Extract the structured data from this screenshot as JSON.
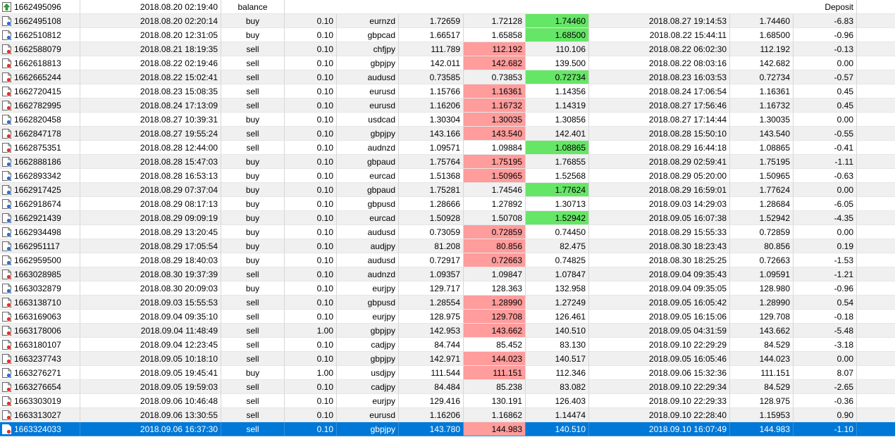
{
  "colors": {
    "sl_hit": "#ff9c9c",
    "tp_hit": "#66e666",
    "selected": "#0078d7",
    "alt_row": "#f0f0f0"
  },
  "balance_row": {
    "ticket": "1662495096",
    "open_time": "2018.08.20 02:19:40",
    "type": "balance",
    "comment": "Deposit",
    "icon": "balance-icon"
  },
  "rows": [
    {
      "ticket": "1662495108",
      "open_time": "2018.08.20 02:20:14",
      "type": "buy",
      "size": "0.10",
      "symbol": "eurnzd",
      "price": "1.72659",
      "sl": "1.72128",
      "tp": "1.74460",
      "close_time": "2018.08.27 19:14:53",
      "close_price": "1.74460",
      "profit": "-6.83",
      "hit": "tp"
    },
    {
      "ticket": "1662510812",
      "open_time": "2018.08.20 12:31:05",
      "type": "buy",
      "size": "0.10",
      "symbol": "gbpcad",
      "price": "1.66517",
      "sl": "1.65858",
      "tp": "1.68500",
      "close_time": "2018.08.22 15:44:11",
      "close_price": "1.68500",
      "profit": "-0.96",
      "hit": "tp"
    },
    {
      "ticket": "1662588079",
      "open_time": "2018.08.21 18:19:35",
      "type": "sell",
      "size": "0.10",
      "symbol": "chfjpy",
      "price": "111.789",
      "sl": "112.192",
      "tp": "110.106",
      "close_time": "2018.08.22 06:02:30",
      "close_price": "112.192",
      "profit": "-0.13",
      "hit": "sl"
    },
    {
      "ticket": "1662618813",
      "open_time": "2018.08.22 02:19:46",
      "type": "sell",
      "size": "0.10",
      "symbol": "gbpjpy",
      "price": "142.011",
      "sl": "142.682",
      "tp": "139.500",
      "close_time": "2018.08.22 08:03:16",
      "close_price": "142.682",
      "profit": "0.00",
      "hit": "sl"
    },
    {
      "ticket": "1662665244",
      "open_time": "2018.08.22 15:02:41",
      "type": "sell",
      "size": "0.10",
      "symbol": "audusd",
      "price": "0.73585",
      "sl": "0.73853",
      "tp": "0.72734",
      "close_time": "2018.08.23 16:03:53",
      "close_price": "0.72734",
      "profit": "-0.57",
      "hit": "tp"
    },
    {
      "ticket": "1662720415",
      "open_time": "2018.08.23 15:08:35",
      "type": "sell",
      "size": "0.10",
      "symbol": "eurusd",
      "price": "1.15766",
      "sl": "1.16361",
      "tp": "1.14356",
      "close_time": "2018.08.24 17:06:54",
      "close_price": "1.16361",
      "profit": "0.45",
      "hit": "sl"
    },
    {
      "ticket": "1662782995",
      "open_time": "2018.08.24 17:13:09",
      "type": "sell",
      "size": "0.10",
      "symbol": "eurusd",
      "price": "1.16206",
      "sl": "1.16732",
      "tp": "1.14319",
      "close_time": "2018.08.27 17:56:46",
      "close_price": "1.16732",
      "profit": "0.45",
      "hit": "sl"
    },
    {
      "ticket": "1662820458",
      "open_time": "2018.08.27 10:39:31",
      "type": "buy",
      "size": "0.10",
      "symbol": "usdcad",
      "price": "1.30304",
      "sl": "1.30035",
      "tp": "1.30856",
      "close_time": "2018.08.27 17:14:44",
      "close_price": "1.30035",
      "profit": "0.00",
      "hit": "sl"
    },
    {
      "ticket": "1662847178",
      "open_time": "2018.08.27 19:55:24",
      "type": "sell",
      "size": "0.10",
      "symbol": "gbpjpy",
      "price": "143.166",
      "sl": "143.540",
      "tp": "142.401",
      "close_time": "2018.08.28 15:50:10",
      "close_price": "143.540",
      "profit": "-0.55",
      "hit": "sl"
    },
    {
      "ticket": "1662875351",
      "open_time": "2018.08.28 12:44:00",
      "type": "sell",
      "size": "0.10",
      "symbol": "audnzd",
      "price": "1.09571",
      "sl": "1.09884",
      "tp": "1.08865",
      "close_time": "2018.08.29 16:44:18",
      "close_price": "1.08865",
      "profit": "-0.41",
      "hit": "tp"
    },
    {
      "ticket": "1662888186",
      "open_time": "2018.08.28 15:47:03",
      "type": "buy",
      "size": "0.10",
      "symbol": "gbpaud",
      "price": "1.75764",
      "sl": "1.75195",
      "tp": "1.76855",
      "close_time": "2018.08.29 02:59:41",
      "close_price": "1.75195",
      "profit": "-1.11",
      "hit": "sl"
    },
    {
      "ticket": "1662893342",
      "open_time": "2018.08.28 16:53:13",
      "type": "buy",
      "size": "0.10",
      "symbol": "eurcad",
      "price": "1.51368",
      "sl": "1.50965",
      "tp": "1.52568",
      "close_time": "2018.08.29 05:20:00",
      "close_price": "1.50965",
      "profit": "-0.63",
      "hit": "sl"
    },
    {
      "ticket": "1662917425",
      "open_time": "2018.08.29 07:37:04",
      "type": "buy",
      "size": "0.10",
      "symbol": "gbpaud",
      "price": "1.75281",
      "sl": "1.74546",
      "tp": "1.77624",
      "close_time": "2018.08.29 16:59:01",
      "close_price": "1.77624",
      "profit": "0.00",
      "hit": "tp"
    },
    {
      "ticket": "1662918674",
      "open_time": "2018.08.29 08:17:13",
      "type": "buy",
      "size": "0.10",
      "symbol": "gbpusd",
      "price": "1.28666",
      "sl": "1.27892",
      "tp": "1.30713",
      "close_time": "2018.09.03 14:29:03",
      "close_price": "1.28684",
      "profit": "-6.05",
      "hit": ""
    },
    {
      "ticket": "1662921439",
      "open_time": "2018.08.29 09:09:19",
      "type": "buy",
      "size": "0.10",
      "symbol": "eurcad",
      "price": "1.50928",
      "sl": "1.50708",
      "tp": "1.52942",
      "close_time": "2018.09.05 16:07:38",
      "close_price": "1.52942",
      "profit": "-4.35",
      "hit": "tp"
    },
    {
      "ticket": "1662934498",
      "open_time": "2018.08.29 13:20:45",
      "type": "buy",
      "size": "0.10",
      "symbol": "audusd",
      "price": "0.73059",
      "sl": "0.72859",
      "tp": "0.74450",
      "close_time": "2018.08.29 15:55:33",
      "close_price": "0.72859",
      "profit": "0.00",
      "hit": "sl"
    },
    {
      "ticket": "1662951117",
      "open_time": "2018.08.29 17:05:54",
      "type": "buy",
      "size": "0.10",
      "symbol": "audjpy",
      "price": "81.208",
      "sl": "80.856",
      "tp": "82.475",
      "close_time": "2018.08.30 18:23:43",
      "close_price": "80.856",
      "profit": "0.19",
      "hit": "sl"
    },
    {
      "ticket": "1662959500",
      "open_time": "2018.08.29 18:40:03",
      "type": "buy",
      "size": "0.10",
      "symbol": "audusd",
      "price": "0.72917",
      "sl": "0.72663",
      "tp": "0.74825",
      "close_time": "2018.08.30 18:25:25",
      "close_price": "0.72663",
      "profit": "-1.53",
      "hit": "sl"
    },
    {
      "ticket": "1663028985",
      "open_time": "2018.08.30 19:37:39",
      "type": "sell",
      "size": "0.10",
      "symbol": "audnzd",
      "price": "1.09357",
      "sl": "1.09847",
      "tp": "1.07847",
      "close_time": "2018.09.04 09:35:43",
      "close_price": "1.09591",
      "profit": "-1.21",
      "hit": ""
    },
    {
      "ticket": "1663032879",
      "open_time": "2018.08.30 20:09:03",
      "type": "buy",
      "size": "0.10",
      "symbol": "eurjpy",
      "price": "129.717",
      "sl": "128.363",
      "tp": "132.958",
      "close_time": "2018.09.04 09:35:05",
      "close_price": "128.980",
      "profit": "-0.96",
      "hit": ""
    },
    {
      "ticket": "1663138710",
      "open_time": "2018.09.03 15:55:53",
      "type": "sell",
      "size": "0.10",
      "symbol": "gbpusd",
      "price": "1.28554",
      "sl": "1.28990",
      "tp": "1.27249",
      "close_time": "2018.09.05 16:05:42",
      "close_price": "1.28990",
      "profit": "0.54",
      "hit": "sl"
    },
    {
      "ticket": "1663169063",
      "open_time": "2018.09.04 09:35:10",
      "type": "sell",
      "size": "0.10",
      "symbol": "eurjpy",
      "price": "128.975",
      "sl": "129.708",
      "tp": "126.461",
      "close_time": "2018.09.05 16:15:06",
      "close_price": "129.708",
      "profit": "-0.18",
      "hit": "sl"
    },
    {
      "ticket": "1663178006",
      "open_time": "2018.09.04 11:48:49",
      "type": "sell",
      "size": "1.00",
      "symbol": "gbpjpy",
      "price": "142.953",
      "sl": "143.662",
      "tp": "140.510",
      "close_time": "2018.09.05 04:31:59",
      "close_price": "143.662",
      "profit": "-5.48",
      "hit": "sl"
    },
    {
      "ticket": "1663180107",
      "open_time": "2018.09.04 12:23:45",
      "type": "sell",
      "size": "0.10",
      "symbol": "cadjpy",
      "price": "84.744",
      "sl": "85.452",
      "tp": "83.130",
      "close_time": "2018.09.10 22:29:29",
      "close_price": "84.529",
      "profit": "-3.18",
      "hit": ""
    },
    {
      "ticket": "1663237743",
      "open_time": "2018.09.05 10:18:10",
      "type": "sell",
      "size": "0.10",
      "symbol": "gbpjpy",
      "price": "142.971",
      "sl": "144.023",
      "tp": "140.517",
      "close_time": "2018.09.05 16:05:46",
      "close_price": "144.023",
      "profit": "0.00",
      "hit": "sl"
    },
    {
      "ticket": "1663276271",
      "open_time": "2018.09.05 19:45:41",
      "type": "buy",
      "size": "1.00",
      "symbol": "usdjpy",
      "price": "111.544",
      "sl": "111.151",
      "tp": "112.346",
      "close_time": "2018.09.06 15:32:36",
      "close_price": "111.151",
      "profit": "8.07",
      "hit": "sl"
    },
    {
      "ticket": "1663276654",
      "open_time": "2018.09.05 19:59:03",
      "type": "sell",
      "size": "0.10",
      "symbol": "cadjpy",
      "price": "84.484",
      "sl": "85.238",
      "tp": "83.082",
      "close_time": "2018.09.10 22:29:34",
      "close_price": "84.529",
      "profit": "-2.65",
      "hit": ""
    },
    {
      "ticket": "1663303019",
      "open_time": "2018.09.06 10:46:48",
      "type": "sell",
      "size": "0.10",
      "symbol": "eurjpy",
      "price": "129.416",
      "sl": "130.191",
      "tp": "126.403",
      "close_time": "2018.09.10 22:29:33",
      "close_price": "128.975",
      "profit": "-0.36",
      "hit": ""
    },
    {
      "ticket": "1663313027",
      "open_time": "2018.09.06 13:30:55",
      "type": "sell",
      "size": "0.10",
      "symbol": "eurusd",
      "price": "1.16206",
      "sl": "1.16862",
      "tp": "1.14474",
      "close_time": "2018.09.10 22:28:40",
      "close_price": "1.15953",
      "profit": "0.90",
      "hit": ""
    },
    {
      "ticket": "1663324033",
      "open_time": "2018.09.06 16:37:30",
      "type": "sell",
      "size": "0.10",
      "symbol": "gbpjpy",
      "price": "143.780",
      "sl": "144.983",
      "tp": "140.510",
      "close_time": "2018.09.10 16:07:49",
      "close_price": "144.983",
      "profit": "-1.10",
      "hit": "sl",
      "selected": true
    }
  ]
}
